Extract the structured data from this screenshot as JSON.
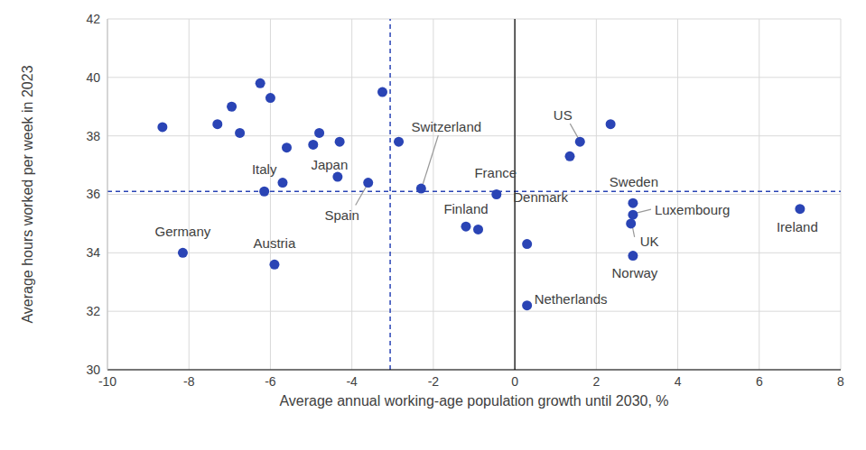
{
  "chart_data": {
    "type": "scatter",
    "x_label": "Average annual working-age population growth until 2030, %",
    "y_label": "Average hours worked per week in 2023",
    "x": [
      -8.65,
      -8.15,
      -7.3,
      -6.95,
      -6.75,
      -6.25,
      -6.0,
      -6.15,
      -5.9,
      -5.7,
      -5.6,
      -4.95,
      -4.8,
      -4.3,
      -4.35,
      -3.6,
      -3.25,
      -2.85,
      -2.3,
      -1.2,
      -0.9,
      -0.45,
      0.3,
      0.3,
      1.35,
      1.6,
      2.35,
      2.9,
      2.9,
      2.85,
      2.9,
      7.0
    ],
    "y": [
      38.3,
      34.0,
      38.4,
      39.0,
      38.1,
      39.8,
      39.3,
      36.1,
      33.6,
      36.4,
      37.6,
      37.7,
      38.1,
      37.8,
      36.6,
      36.4,
      39.5,
      37.8,
      36.2,
      34.9,
      34.8,
      36.0,
      34.3,
      32.2,
      37.3,
      37.8,
      38.4,
      35.7,
      35.3,
      35.0,
      33.9,
      35.5
    ],
    "labels": [
      null,
      "Germany",
      null,
      null,
      null,
      null,
      null,
      "Italy",
      "Austria",
      null,
      null,
      null,
      null,
      null,
      "Japan",
      "Spain",
      null,
      null,
      "Switzerland",
      "Finland",
      null,
      "France",
      "Denmark",
      "Netherlands",
      null,
      "US",
      null,
      "Sweden",
      "Luxembourg",
      "UK",
      "Norway",
      "Ireland"
    ],
    "color": "#2a44b5",
    "marker": "circle",
    "xlim": [
      -10,
      8
    ],
    "xticks": [
      -10,
      -8,
      -6,
      -4,
      -2,
      0,
      2,
      4,
      6,
      8
    ],
    "ylim": [
      30,
      42
    ],
    "yticks": [
      30,
      32,
      34,
      36,
      38,
      40,
      42
    ],
    "grid": true,
    "reference_lines": [
      {
        "axis": "x",
        "value": -3.06,
        "line_style": "dashed",
        "color": "#2a44b5"
      },
      {
        "axis": "y",
        "value": 36.1,
        "line_style": "dashed",
        "color": "#2a44b5"
      },
      {
        "axis": "x",
        "value": 0,
        "line_style": "solid",
        "color": "#000000"
      }
    ]
  }
}
